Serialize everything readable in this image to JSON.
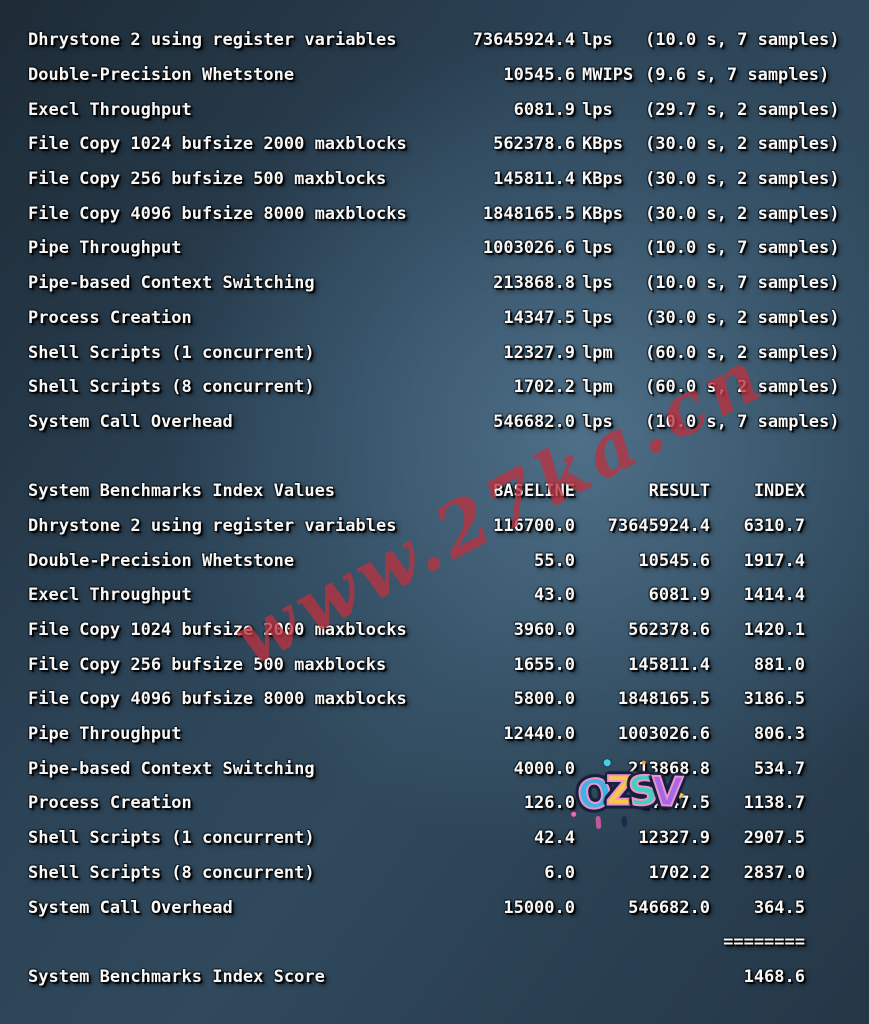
{
  "results": {
    "rows": [
      {
        "name": "Dhrystone 2 using register variables",
        "value": "73645924.4",
        "unit": "lps",
        "timing": "(10.0 s, 7 samples)"
      },
      {
        "name": "Double-Precision Whetstone",
        "value": "10545.6",
        "unit": "MWIPS",
        "timing": "(9.6 s, 7 samples)"
      },
      {
        "name": "Execl Throughput",
        "value": "6081.9",
        "unit": "lps",
        "timing": "(29.7 s, 2 samples)"
      },
      {
        "name": "File Copy 1024 bufsize 2000 maxblocks",
        "value": "562378.6",
        "unit": "KBps",
        "timing": "(30.0 s, 2 samples)"
      },
      {
        "name": "File Copy 256 bufsize 500 maxblocks",
        "value": "145811.4",
        "unit": "KBps",
        "timing": "(30.0 s, 2 samples)"
      },
      {
        "name": "File Copy 4096 bufsize 8000 maxblocks",
        "value": "1848165.5",
        "unit": "KBps",
        "timing": "(30.0 s, 2 samples)"
      },
      {
        "name": "Pipe Throughput",
        "value": "1003026.6",
        "unit": "lps",
        "timing": "(10.0 s, 7 samples)"
      },
      {
        "name": "Pipe-based Context Switching",
        "value": "213868.8",
        "unit": "lps",
        "timing": "(10.0 s, 7 samples)"
      },
      {
        "name": "Process Creation",
        "value": "14347.5",
        "unit": "lps",
        "timing": "(30.0 s, 2 samples)"
      },
      {
        "name": "Shell Scripts (1 concurrent)",
        "value": "12327.9",
        "unit": "lpm",
        "timing": "(60.0 s, 2 samples)"
      },
      {
        "name": "Shell Scripts (8 concurrent)",
        "value": "1702.2",
        "unit": "lpm",
        "timing": "(60.0 s, 2 samples)"
      },
      {
        "name": "System Call Overhead",
        "value": "546682.0",
        "unit": "lps",
        "timing": "(10.0 s, 7 samples)"
      }
    ]
  },
  "index_table": {
    "title": "System Benchmarks Index Values",
    "columns": [
      "BASELINE",
      "RESULT",
      "INDEX"
    ],
    "rows": [
      {
        "name": "Dhrystone 2 using register variables",
        "baseline": "116700.0",
        "result": "73645924.4",
        "index": "6310.7"
      },
      {
        "name": "Double-Precision Whetstone",
        "baseline": "55.0",
        "result": "10545.6",
        "index": "1917.4"
      },
      {
        "name": "Execl Throughput",
        "baseline": "43.0",
        "result": "6081.9",
        "index": "1414.4"
      },
      {
        "name": "File Copy 1024 bufsize 2000 maxblocks",
        "baseline": "3960.0",
        "result": "562378.6",
        "index": "1420.1"
      },
      {
        "name": "File Copy 256 bufsize 500 maxblocks",
        "baseline": "1655.0",
        "result": "145811.4",
        "index": "881.0"
      },
      {
        "name": "File Copy 4096 bufsize 8000 maxblocks",
        "baseline": "5800.0",
        "result": "1848165.5",
        "index": "3186.5"
      },
      {
        "name": "Pipe Throughput",
        "baseline": "12440.0",
        "result": "1003026.6",
        "index": "806.3"
      },
      {
        "name": "Pipe-based Context Switching",
        "baseline": "4000.0",
        "result": "213868.8",
        "index": "534.7"
      },
      {
        "name": "Process Creation",
        "baseline": "126.0",
        "result": "14347.5",
        "index": "1138.7"
      },
      {
        "name": "Shell Scripts (1 concurrent)",
        "baseline": "42.4",
        "result": "12327.9",
        "index": "2907.5"
      },
      {
        "name": "Shell Scripts (8 concurrent)",
        "baseline": "6.0",
        "result": "1702.2",
        "index": "2837.0"
      },
      {
        "name": "System Call Overhead",
        "baseline": "15000.0",
        "result": "546682.0",
        "index": "364.5"
      }
    ]
  },
  "score": {
    "divider": "========",
    "label": "System Benchmarks Index Score",
    "value": "1468.6"
  },
  "watermark": {
    "text": "www.27ka.cn",
    "color": "#b93341"
  },
  "sticker": {
    "letters": [
      {
        "ch": "O",
        "color": "#3fb3e8"
      },
      {
        "ch": "Z",
        "color": "#f7c948"
      },
      {
        "ch": "S",
        "color": "#41d0c0"
      },
      {
        "ch": "V",
        "color": "#a468e8"
      }
    ],
    "star_icon": "✦"
  }
}
